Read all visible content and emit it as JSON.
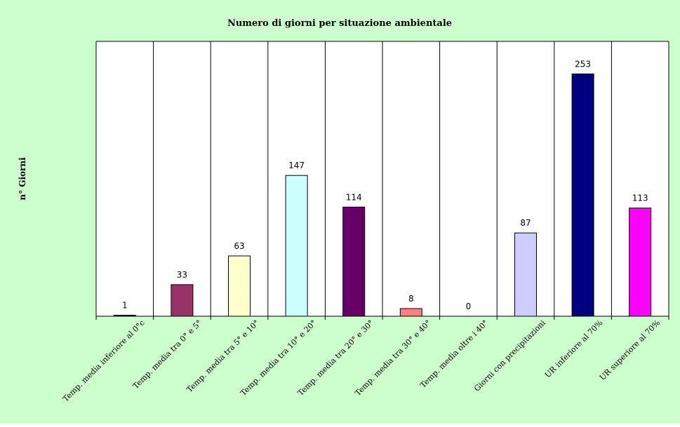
{
  "chart_data": {
    "type": "bar",
    "title": "Numero di giorni per situazione ambientale",
    "xlabel": "",
    "ylabel": "n° Giorni",
    "ylim": [
      0,
      287
    ],
    "grid": false,
    "legend": "none",
    "categories": [
      "Temp. media inferiore al 0°c",
      "Temp. media tra 0° e 5°",
      "Temp. media tra 5° e 10°",
      "Temp. media tra 10° e 20°",
      "Temp. media tra 20° e 30°",
      "Temp. media tra 30° e 40°",
      "Temp. media oltre i 40°",
      "Giorni con precipitazioni",
      "UR inferiore al 70%",
      "UR superiore al 70%"
    ],
    "values": [
      1,
      33,
      63,
      147,
      114,
      8,
      0,
      87,
      253,
      113
    ],
    "bar_colors": [
      "#000000",
      "#993366",
      "#FFFFCC",
      "#CCFFFF",
      "#660066",
      "#FF8080",
      "#0066CC",
      "#CCCCFF",
      "#000080",
      "#FF00FF"
    ],
    "colors": {
      "background": "#CCFFCC",
      "plot_area": "#FFFFFF",
      "frame": "#000000"
    }
  }
}
